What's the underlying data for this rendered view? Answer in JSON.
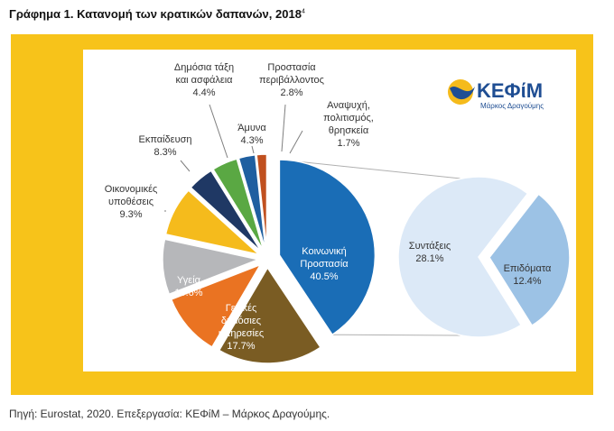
{
  "header": {
    "title": "Γράφημα 1. Κατανομή των κρατικών δαπανών, 2018",
    "footnote_mark": "4"
  },
  "source": "Πηγή: Eurostat, 2020. Επεξεργασία: ΚΕΦίΜ – Μάρκος Δραγούμης.",
  "logo": {
    "name": "ΚΕΦίΜ",
    "subtitle": "Μάρκος Δραγούμης"
  },
  "colors": {
    "frame": "#f7c31a",
    "social": "#1a6db6",
    "general_services": "#7a5c23",
    "health": "#ea7322",
    "economic": "#b6b7ba",
    "education": "#f5bb1c",
    "public_order": "#1f3864",
    "defence": "#5aa843",
    "environment": "#1f5fa0",
    "culture": "#c0501f",
    "pensions": "#dce9f7",
    "benefits": "#9cc2e5"
  },
  "chart_data": {
    "type": "pie",
    "main_pie": [
      {
        "label": "Κοινωνική Προστασία",
        "lines": [
          "Κοινωνική",
          "Προστασία"
        ],
        "value": 40.5,
        "value_label": "40.5%",
        "color": "#1a6db6"
      },
      {
        "label": "Γενικές δημόσιες υπηρεσίες",
        "lines": [
          "Γενικές",
          "δημόσιες",
          "υπηρεσίες"
        ],
        "value": 17.7,
        "value_label": "17.7%",
        "color": "#7a5c23"
      },
      {
        "label": "Υγεία",
        "lines": [
          "Υγεία"
        ],
        "value": 10.6,
        "value_label": "10.6%",
        "color": "#ea7322"
      },
      {
        "label": "Οικονομικές υποθέσεις",
        "lines": [
          "Οικονομικές",
          "υποθέσεις"
        ],
        "value": 9.3,
        "value_label": "9.3%",
        "color": "#b6b7ba"
      },
      {
        "label": "Εκπαίδευση",
        "lines": [
          "Εκπαίδευση"
        ],
        "value": 8.3,
        "value_label": "8.3%",
        "color": "#f5bb1c"
      },
      {
        "label": "Δημόσια τάξη και ασφάλεια",
        "lines": [
          "Δημόσια τάξη",
          "και ασφάλεια"
        ],
        "value": 4.4,
        "value_label": "4.4%",
        "color": "#1f3864"
      },
      {
        "label": "Άμυνα",
        "lines": [
          "Άμυνα"
        ],
        "value": 4.3,
        "value_label": "4.3%",
        "color": "#5aa843"
      },
      {
        "label": "Προστασία περιβάλλοντος",
        "lines": [
          "Προστασία",
          "περιβάλλοντος"
        ],
        "value": 2.8,
        "value_label": "2.8%",
        "color": "#1f5fa0"
      },
      {
        "label": "Αναψυχή, πολιτισμός, θρησκεία",
        "lines": [
          "Αναψυχή,",
          "πολιτισμός,",
          "θρησκεία"
        ],
        "value": 1.7,
        "value_label": "1.7%",
        "color": "#c0501f"
      }
    ],
    "breakdown_of": "Κοινωνική Προστασία",
    "sub_pie": [
      {
        "label": "Συντάξεις",
        "lines": [
          "Συντάξεις"
        ],
        "value": 28.1,
        "value_label": "28.1%",
        "color": "#dce9f7"
      },
      {
        "label": "Επιδόματα",
        "lines": [
          "Επιδόματα"
        ],
        "value": 12.4,
        "value_label": "12.4%",
        "color": "#9cc2e5"
      }
    ]
  }
}
